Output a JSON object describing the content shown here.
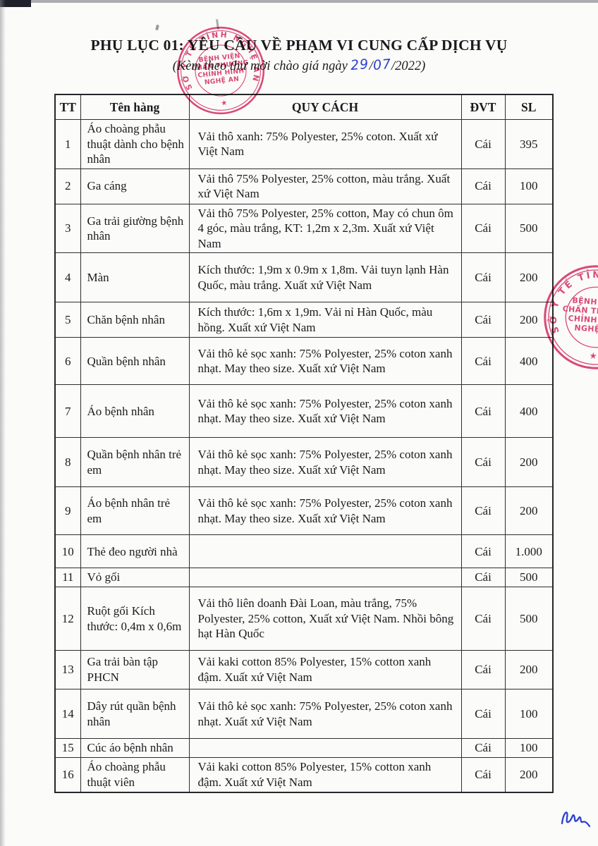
{
  "document": {
    "title": "PHỤ LỤC 01: YÊU CẦU VỀ PHẠM VI CUNG CẤP DỊCH VỤ",
    "subtitle_prefix": "(Kèm theo thư mời chào giá ngày",
    "date": {
      "day": "29",
      "sep": "/",
      "month": "07",
      "suffix": "/2022)"
    }
  },
  "table": {
    "headers": [
      "TT",
      "Tên hàng",
      "QUY CÁCH",
      "ĐVT",
      "SL"
    ],
    "rows": [
      {
        "tt": "1",
        "name": "Áo choàng phẫu thuật dành cho bệnh nhân",
        "spec": "Vải thô xanh: 75% Polyester, 25% coton. Xuất xứ Việt Nam",
        "unit": "Cái",
        "qty": "395"
      },
      {
        "tt": "2",
        "name": "Ga cáng",
        "spec": "Vải thô 75% Polyester, 25% cotton, màu trắng. Xuất xứ Việt Nam",
        "unit": "Cái",
        "qty": "100"
      },
      {
        "tt": "3",
        "name": "Ga trải giường bệnh nhân",
        "spec": "Vải thô 75% Polyester, 25% cotton, May có chun ôm 4 góc, màu trắng, KT: 1,2m x 2,3m. Xuất xứ Việt Nam",
        "unit": "Cái",
        "qty": "500"
      },
      {
        "tt": "4",
        "name": "Màn",
        "spec": "Kích thước: 1,9m x 0.9m x 1,8m. Vải tuyn lạnh Hàn Quốc, màu trắng. Xuất xứ Việt Nam",
        "unit": "Cái",
        "qty": "200"
      },
      {
        "tt": "5",
        "name": "Chăn bệnh nhân",
        "spec": "Kích thước: 1,6m x 1,9m. Vải nỉ Hàn Quốc, màu hồng. Xuất xứ Việt Nam",
        "unit": "Cái",
        "qty": "200"
      },
      {
        "tt": "6",
        "name": "Quần bệnh nhân",
        "spec": "Vải thô kẻ sọc xanh: 75% Polyester, 25% coton xanh nhạt. May theo size. Xuất xứ Việt Nam",
        "unit": "Cái",
        "qty": "400"
      },
      {
        "tt": "7",
        "name": "Áo bệnh nhân",
        "spec": "Vải thô kẻ sọc xanh: 75% Polyester, 25% coton xanh nhạt. May theo size. Xuất xứ Việt Nam",
        "unit": "Cái",
        "qty": "400"
      },
      {
        "tt": "8",
        "name": "Quần bệnh nhân trẻ em",
        "spec": "Vải thô kẻ sọc xanh: 75% Polyester, 25% coton xanh nhạt. May theo size. Xuất xứ Việt Nam",
        "unit": "Cái",
        "qty": "200"
      },
      {
        "tt": "9",
        "name": "Áo bệnh nhân trẻ em",
        "spec": "Vải thô kẻ sọc xanh: 75% Polyester, 25% coton xanh nhạt. May theo size. Xuất xứ Việt Nam",
        "unit": "Cái",
        "qty": "200"
      },
      {
        "tt": "10",
        "name": "Thẻ đeo người nhà",
        "spec": "",
        "unit": "Cái",
        "qty": "1.000"
      },
      {
        "tt": "11",
        "name": "Vỏ gối",
        "spec": "",
        "unit": "Cái",
        "qty": "500"
      },
      {
        "tt": "12",
        "name": "Ruột gối Kích thước: 0,4m x 0,6m",
        "spec": "Vải thô liên doanh Đài Loan, màu trắng, 75% Polyester, 25% cotton, Xuất xứ Việt Nam. Nhồi bông hạt Hàn Quốc",
        "unit": "Cái",
        "qty": "500"
      },
      {
        "tt": "13",
        "name": "Ga trải bàn tập PHCN",
        "spec": "Vải kaki cotton 85% Polyester, 15%  cotton xanh đậm. Xuất xứ Việt Nam",
        "unit": "Cái",
        "qty": "200"
      },
      {
        "tt": "14",
        "name": "Dây rút quần bệnh nhân",
        "spec": "Vải thô kẻ sọc xanh: 75% Polyester, 25% coton xanh nhạt. Xuất xứ Việt Nam",
        "unit": "Cái",
        "qty": "100"
      },
      {
        "tt": "15",
        "name": "Cúc áo bệnh nhân",
        "spec": "",
        "unit": "Cái",
        "qty": "100"
      },
      {
        "tt": "16",
        "name": "Áo choàng  phẫu thuật viên",
        "spec": "Vải kaki cotton 85% Polyester, 15%  cotton xanh đậm. Xuất xứ Việt Nam",
        "unit": "Cái",
        "qty": "200"
      }
    ]
  },
  "stamp": {
    "ring_text": "SỞ Y TẾ TỈNH NGHỆ AN",
    "center_lines": [
      "BỆNH VIỆN",
      "CHẤN THƯƠNG",
      "CHỈNH HÌNH",
      "NGHỆ AN"
    ],
    "star": "★",
    "ink_color": "#d9376b"
  },
  "signature": {
    "ink_color": "#2b3fd0"
  }
}
